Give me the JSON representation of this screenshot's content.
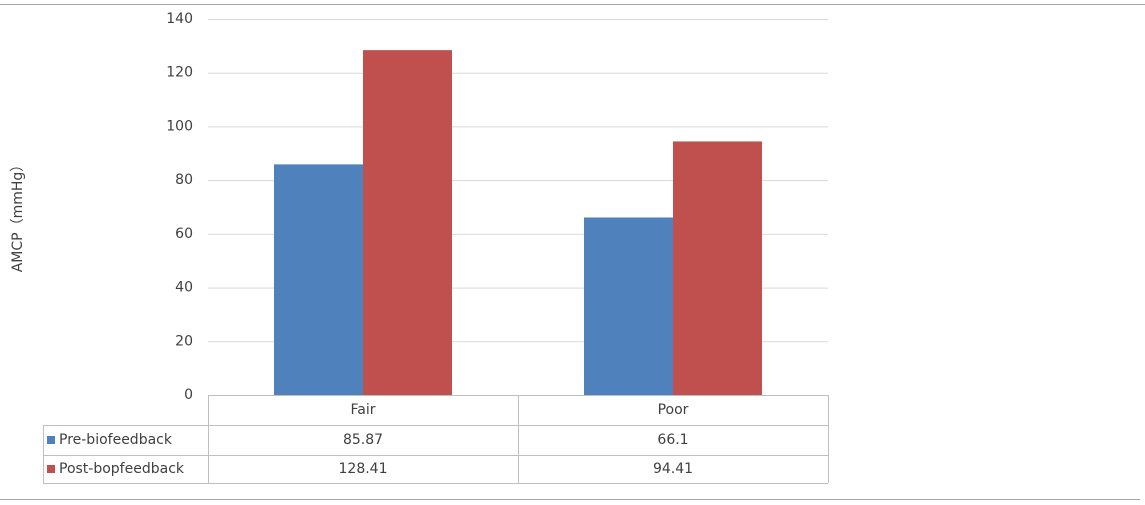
{
  "chart_data": {
    "type": "bar",
    "y_axis_label": "AMCP（mmHg）",
    "categories": [
      "Fair",
      "Poor"
    ],
    "series": [
      {
        "name": "Pre-biofeedback",
        "color": "#4f81bd",
        "values": [
          85.87,
          66.1
        ]
      },
      {
        "name": "Post-bopfeedback",
        "color": "#c0504d",
        "values": [
          128.41,
          94.41
        ]
      }
    ],
    "ylim": [
      0,
      140
    ],
    "yticks": [
      0,
      20,
      40,
      60,
      80,
      100,
      120,
      140
    ],
    "grid": true,
    "data_table": true
  }
}
